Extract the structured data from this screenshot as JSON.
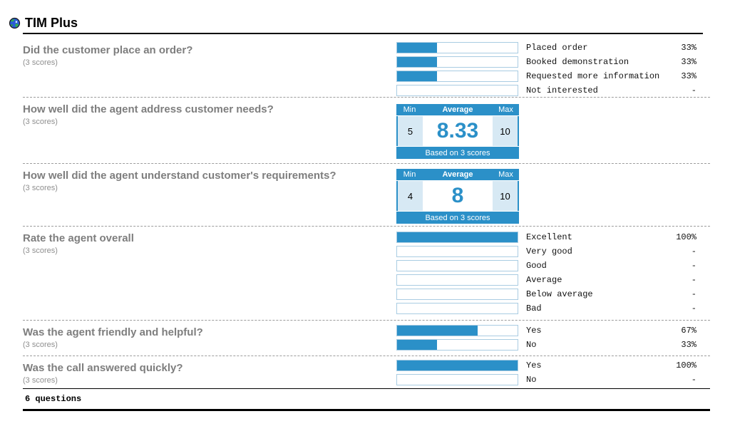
{
  "header": {
    "title": "TIM Plus",
    "icon": "globe-icon"
  },
  "colors": {
    "accent": "#2b90c8",
    "bar_border": "#a9cce2",
    "stat_cell_bg": "#d7e9f4",
    "title_gray": "#7e7e7e"
  },
  "questions": [
    {
      "type": "bars",
      "title": "Did the customer place an order?",
      "scores_label": "(3 scores)",
      "options": [
        {
          "label": "Placed order",
          "percent": "33%",
          "fill": 33
        },
        {
          "label": "Booked demonstration",
          "percent": "33%",
          "fill": 33
        },
        {
          "label": "Requested more information",
          "percent": "33%",
          "fill": 33
        },
        {
          "label": "Not interested",
          "percent": "-",
          "fill": 0
        }
      ]
    },
    {
      "type": "stats",
      "title": "How well did the agent address customer needs?",
      "scores_label": "(3 scores)",
      "stats": {
        "min_label": "Min",
        "avg_label": "Average",
        "max_label": "Max",
        "min": "5",
        "avg": "8.33",
        "max": "10",
        "based": "Based on 3 scores"
      }
    },
    {
      "type": "stats",
      "title": "How well did the agent understand customer's requirements?",
      "scores_label": "(3 scores)",
      "stats": {
        "min_label": "Min",
        "avg_label": "Average",
        "max_label": "Max",
        "min": "4",
        "avg": "8",
        "max": "10",
        "based": "Based on 3 scores"
      }
    },
    {
      "type": "bars",
      "title": "Rate the agent overall",
      "scores_label": "(3 scores)",
      "options": [
        {
          "label": "Excellent",
          "percent": "100%",
          "fill": 100
        },
        {
          "label": "Very good",
          "percent": "-",
          "fill": 0
        },
        {
          "label": "Good",
          "percent": "-",
          "fill": 0
        },
        {
          "label": "Average",
          "percent": "-",
          "fill": 0
        },
        {
          "label": "Below average",
          "percent": "-",
          "fill": 0
        },
        {
          "label": "Bad",
          "percent": "-",
          "fill": 0
        }
      ]
    },
    {
      "type": "bars",
      "title": "Was the agent friendly and helpful?",
      "scores_label": "(3 scores)",
      "options": [
        {
          "label": "Yes",
          "percent": "67%",
          "fill": 67
        },
        {
          "label": "No",
          "percent": "33%",
          "fill": 33
        }
      ]
    },
    {
      "type": "bars",
      "title": "Was the call answered quickly?",
      "scores_label": "(3 scores)",
      "options": [
        {
          "label": "Yes",
          "percent": "100%",
          "fill": 100
        },
        {
          "label": "No",
          "percent": "-",
          "fill": 0
        }
      ]
    }
  ],
  "footer": {
    "summary": "6 questions"
  }
}
